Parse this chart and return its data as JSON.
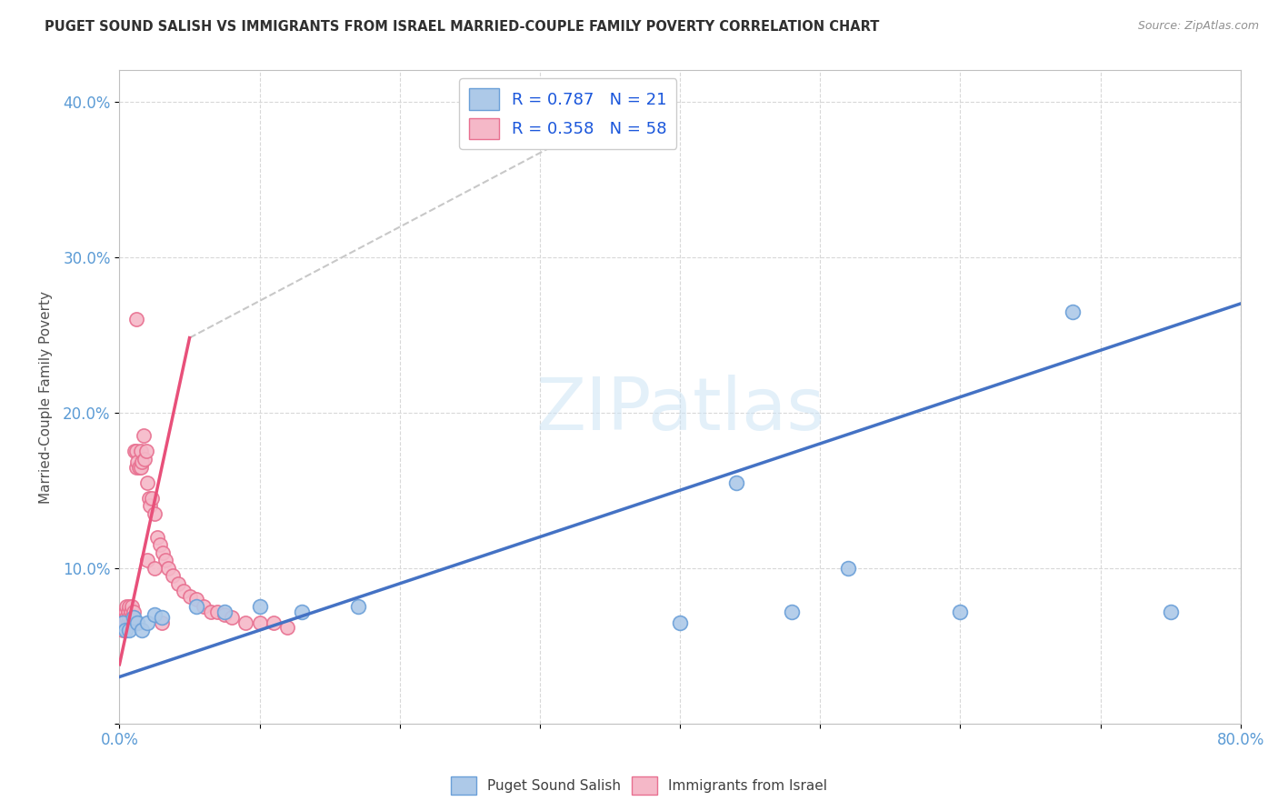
{
  "title": "PUGET SOUND SALISH VS IMMIGRANTS FROM ISRAEL MARRIED-COUPLE FAMILY POVERTY CORRELATION CHART",
  "source": "Source: ZipAtlas.com",
  "ylabel": "Married-Couple Family Poverty",
  "watermark": "ZIPatlas",
  "xlim": [
    0.0,
    0.8
  ],
  "ylim": [
    0.0,
    0.42
  ],
  "xticks": [
    0.0,
    0.1,
    0.2,
    0.3,
    0.4,
    0.5,
    0.6,
    0.7,
    0.8
  ],
  "xticklabels": [
    "0.0%",
    "",
    "",
    "",
    "",
    "",
    "",
    "",
    "80.0%"
  ],
  "yticks": [
    0.0,
    0.1,
    0.2,
    0.3,
    0.4
  ],
  "yticklabels": [
    "",
    "10.0%",
    "20.0%",
    "30.0%",
    "40.0%"
  ],
  "blue_R": 0.787,
  "blue_N": 21,
  "pink_R": 0.358,
  "pink_N": 58,
  "blue_label": "Puget Sound Salish",
  "pink_label": "Immigrants from Israel",
  "blue_color": "#adc9e8",
  "pink_color": "#f5b8c8",
  "blue_edge_color": "#6a9fd8",
  "pink_edge_color": "#e87090",
  "blue_line_color": "#4472c4",
  "pink_line_color": "#e8507a",
  "gray_dash_color": "#c8c8c8",
  "background_color": "#ffffff",
  "grid_color": "#d8d8d8",
  "blue_x": [
    0.002,
    0.004,
    0.007,
    0.01,
    0.013,
    0.016,
    0.02,
    0.025,
    0.03,
    0.055,
    0.075,
    0.1,
    0.13,
    0.17,
    0.4,
    0.44,
    0.48,
    0.52,
    0.6,
    0.68,
    0.75
  ],
  "blue_y": [
    0.065,
    0.06,
    0.06,
    0.068,
    0.065,
    0.06,
    0.065,
    0.07,
    0.068,
    0.075,
    0.072,
    0.075,
    0.072,
    0.075,
    0.065,
    0.155,
    0.072,
    0.1,
    0.072,
    0.265,
    0.072
  ],
  "pink_x": [
    0.001,
    0.002,
    0.002,
    0.003,
    0.003,
    0.004,
    0.004,
    0.005,
    0.005,
    0.006,
    0.006,
    0.007,
    0.007,
    0.008,
    0.008,
    0.009,
    0.009,
    0.01,
    0.01,
    0.011,
    0.012,
    0.012,
    0.013,
    0.014,
    0.015,
    0.015,
    0.016,
    0.017,
    0.018,
    0.019,
    0.02,
    0.021,
    0.022,
    0.023,
    0.025,
    0.027,
    0.029,
    0.031,
    0.033,
    0.035,
    0.038,
    0.042,
    0.046,
    0.05,
    0.055,
    0.06,
    0.065,
    0.07,
    0.075,
    0.08,
    0.09,
    0.1,
    0.11,
    0.12,
    0.012,
    0.02,
    0.025,
    0.03
  ],
  "pink_y": [
    0.065,
    0.06,
    0.068,
    0.062,
    0.07,
    0.065,
    0.072,
    0.068,
    0.075,
    0.065,
    0.072,
    0.068,
    0.075,
    0.065,
    0.072,
    0.068,
    0.075,
    0.065,
    0.072,
    0.175,
    0.165,
    0.175,
    0.168,
    0.165,
    0.175,
    0.165,
    0.168,
    0.185,
    0.17,
    0.175,
    0.155,
    0.145,
    0.14,
    0.145,
    0.135,
    0.12,
    0.115,
    0.11,
    0.105,
    0.1,
    0.095,
    0.09,
    0.085,
    0.082,
    0.08,
    0.075,
    0.072,
    0.072,
    0.07,
    0.068,
    0.065,
    0.065,
    0.065,
    0.062,
    0.26,
    0.105,
    0.1,
    0.065
  ],
  "blue_line_x": [
    0.0,
    0.8
  ],
  "blue_line_y": [
    0.03,
    0.27
  ],
  "pink_line_x": [
    0.0,
    0.05
  ],
  "pink_line_y": [
    0.038,
    0.248
  ],
  "gray_line_x": [
    0.05,
    0.38
  ],
  "gray_line_y": [
    0.248,
    0.405
  ]
}
